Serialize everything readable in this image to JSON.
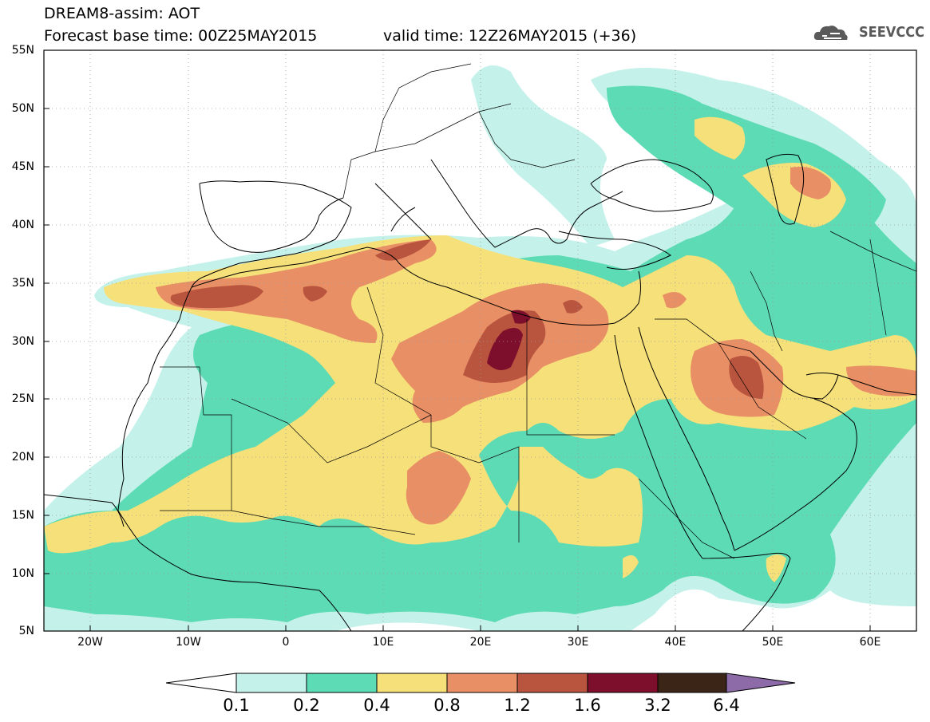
{
  "header": {
    "title": "DREAM8-assim: AOT",
    "forecast_base": "Forecast base time: 00Z25MAY2015",
    "valid_time": "valid time: 12Z26MAY2015 (+36)",
    "logo_text": "SEEVCCC"
  },
  "axes": {
    "lat_labels": [
      "55N",
      "50N",
      "45N",
      "40N",
      "35N",
      "30N",
      "25N",
      "20N",
      "15N",
      "10N",
      "5N"
    ],
    "lon_labels": [
      "20W",
      "10W",
      "0",
      "10E",
      "20E",
      "30E",
      "40E",
      "50E",
      "60E"
    ]
  },
  "colorbar": {
    "levels": [
      "0.1",
      "0.2",
      "0.4",
      "0.8",
      "1.2",
      "1.6",
      "3.2",
      "6.4"
    ],
    "colors": [
      "#c4f2ea",
      "#5ddbb4",
      "#f6e07a",
      "#e88f65",
      "#b9553e",
      "#7e0f2c",
      "#3b2517",
      "#8d6aa8"
    ],
    "under_color": "#ffffff"
  },
  "colors": {
    "aot_0_1": "#c4f2ea",
    "aot_0_2": "#5ddbb4",
    "aot_0_4": "#f6e07a",
    "aot_0_8": "#e88f65",
    "aot_1_2": "#b9553e",
    "aot_1_6": "#7e0f2c"
  }
}
